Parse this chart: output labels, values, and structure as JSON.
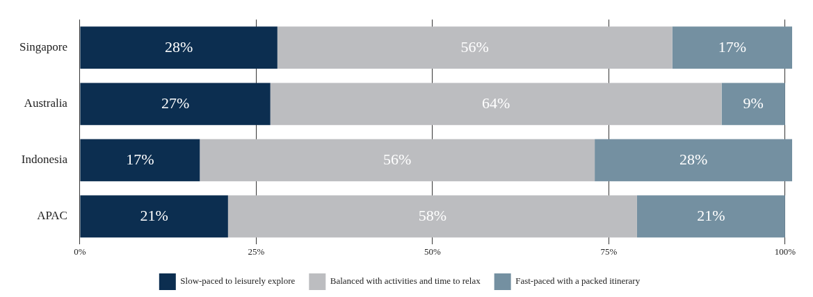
{
  "chart_data": {
    "type": "bar",
    "orientation": "horizontal",
    "stacked": true,
    "categories": [
      "Singapore",
      "Australia",
      "Indonesia",
      "APAC"
    ],
    "series": [
      {
        "name": "Slow-paced to leisurely explore",
        "color": "#0c2e50",
        "values": [
          28,
          27,
          17,
          21
        ],
        "value_labels": [
          "28%",
          "27%",
          "17%",
          "21%"
        ]
      },
      {
        "name": "Balanced with activities and time to relax",
        "color": "#bcbdc0",
        "values": [
          56,
          64,
          56,
          58
        ],
        "value_labels": [
          "56%",
          "64%",
          "56%",
          "58%"
        ]
      },
      {
        "name": "Fast-paced with a packed itinerary",
        "color": "#7490a1",
        "values": [
          17,
          9,
          28,
          21
        ],
        "value_labels": [
          "17%",
          "9%",
          "28%",
          "21%"
        ]
      }
    ],
    "xlim": [
      0,
      101
    ],
    "xticks": [
      {
        "value": 0,
        "label": "0%"
      },
      {
        "value": 25,
        "label": "25%"
      },
      {
        "value": 50,
        "label": "50%"
      },
      {
        "value": 75,
        "label": "75%"
      },
      {
        "value": 100,
        "label": "100%"
      }
    ],
    "grid": "x",
    "legend": "bottom"
  }
}
